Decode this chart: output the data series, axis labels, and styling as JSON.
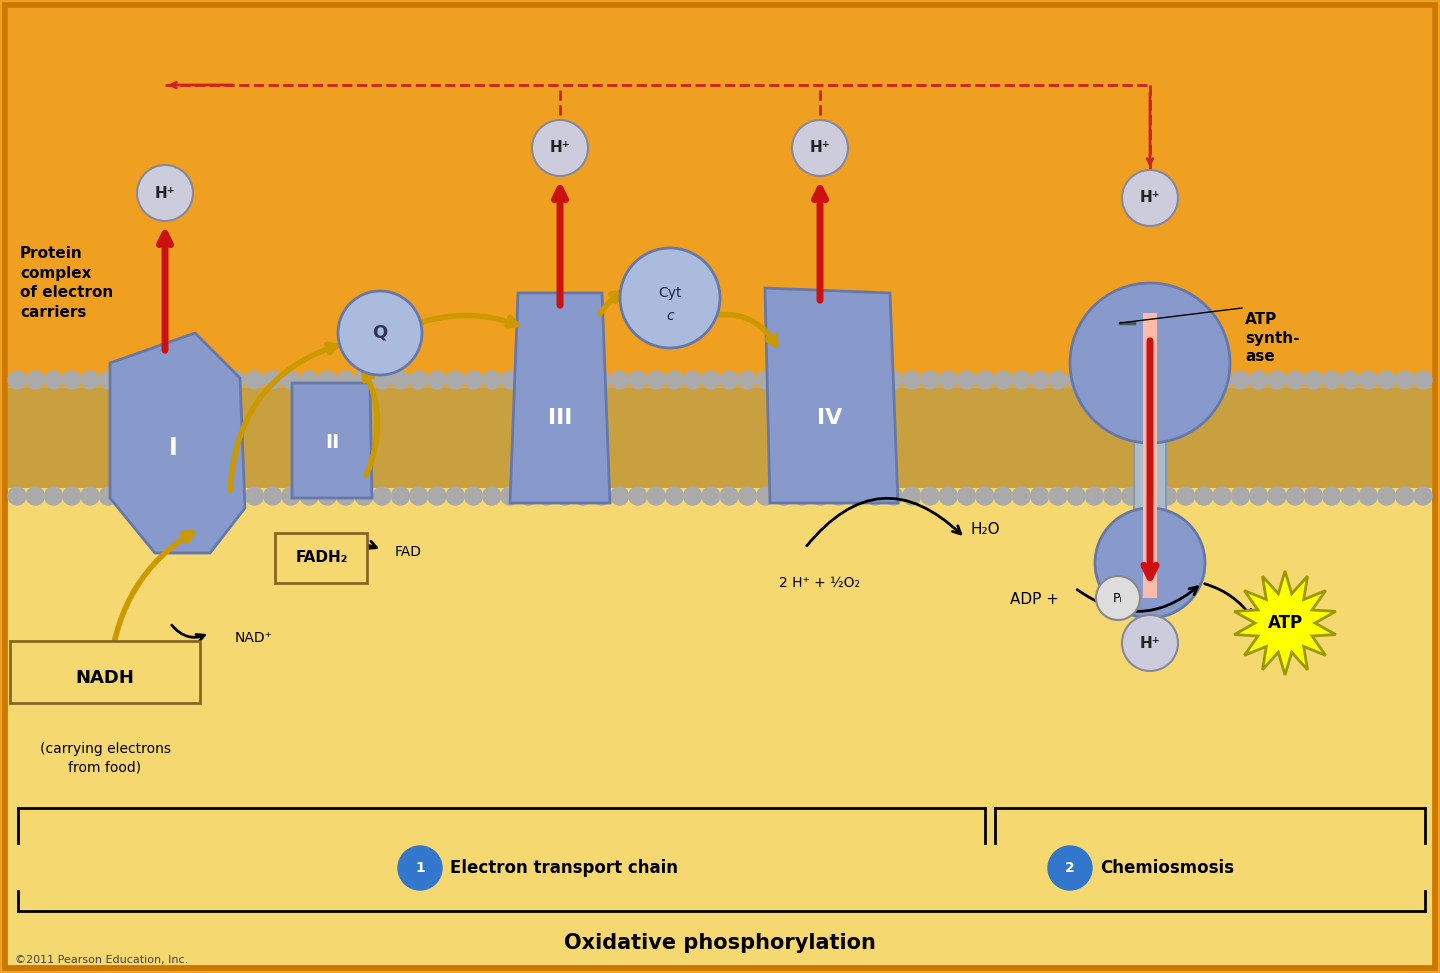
{
  "bg_orange": "#F0A020",
  "bg_yellow": "#F5D870",
  "membrane_tan": "#C8A040",
  "membrane_gray": "#AAAAAA",
  "complex_blue": "#8899CC",
  "complex_blue_dark": "#6677AA",
  "complex_blue_light": "#AABBDD",
  "title": "Oxidative phosphorylation",
  "label1": "Electron transport chain",
  "label2": "Chemiosmosis",
  "copyright": "©2011 Pearson Education, Inc.",
  "hplus_color": "#CCCCDD",
  "hplus_edge": "#888899",
  "red_arrow": "#CC1111",
  "yellow_arrow": "#CC9900",
  "dashed_red": "#CC2222"
}
